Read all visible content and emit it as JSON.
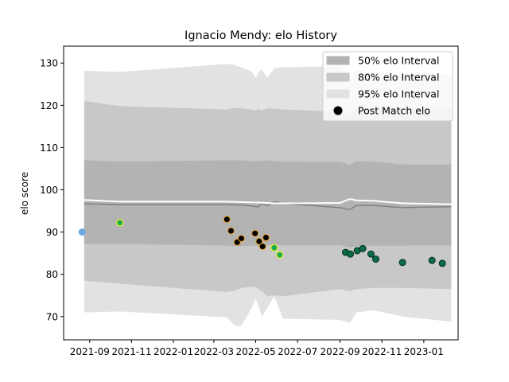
{
  "chart_data": {
    "type": "line",
    "title": "Ignacio Mendy: elo History",
    "xlabel": "",
    "ylabel": "elo score",
    "ylim": [
      64.5,
      134
    ],
    "xlim": [
      "2021-07-25",
      "2023-02-20"
    ],
    "y_ticks": [
      70,
      80,
      90,
      100,
      110,
      120,
      130
    ],
    "x_ticks": [
      "2021-09",
      "2021-11",
      "2022-01",
      "2022-03",
      "2022-05",
      "2022-07",
      "2022-09",
      "2022-11",
      "2023-01"
    ],
    "grid": false,
    "legend_position": "top-right",
    "legend": [
      {
        "label": "50% elo Interval",
        "color": "#b3b3b3",
        "kind": "patch"
      },
      {
        "label": "80% elo Interval",
        "color": "#c8c8c8",
        "kind": "patch"
      },
      {
        "label": "95% elo Interval",
        "color": "#e2e2e2",
        "kind": "patch"
      },
      {
        "label": "Post Match elo",
        "color": "#000000",
        "kind": "marker"
      }
    ],
    "bands": {
      "dates": [
        "2021-08-24",
        "2021-10-15",
        "2022-03-20",
        "2022-04-01",
        "2022-04-10",
        "2022-04-25",
        "2022-05-01",
        "2022-05-05",
        "2022-05-10",
        "2022-05-18",
        "2022-05-28",
        "2022-06-10",
        "2022-09-01",
        "2022-09-15",
        "2022-09-25",
        "2022-10-20",
        "2022-12-01",
        "2023-02-10"
      ],
      "q2_5": [
        71.0,
        71.2,
        69.8,
        67.8,
        67.8,
        72.0,
        74.2,
        72.5,
        70.0,
        72.0,
        74.8,
        69.5,
        69.2,
        68.5,
        71.0,
        71.5,
        70.0,
        68.8
      ],
      "q10": [
        78.5,
        77.8,
        75.8,
        76.2,
        76.8,
        77.0,
        77.0,
        76.5,
        76.0,
        74.8,
        75.0,
        74.8,
        76.5,
        76.0,
        76.5,
        76.8,
        76.8,
        76.5
      ],
      "q25": [
        87.2,
        87.2,
        86.8,
        86.6,
        86.6,
        86.8,
        86.8,
        86.6,
        86.8,
        86.9,
        87.0,
        86.8,
        86.9,
        86.4,
        86.7,
        86.8,
        86.8,
        86.9
      ],
      "q75": [
        107.0,
        106.7,
        107.0,
        107.0,
        107.0,
        106.8,
        106.7,
        106.9,
        106.8,
        107.0,
        106.8,
        106.7,
        106.6,
        105.9,
        106.8,
        106.7,
        106.0,
        106.0
      ],
      "q90": [
        121.0,
        119.8,
        119.0,
        119.4,
        119.3,
        119.0,
        118.8,
        119.2,
        118.8,
        119.3,
        119.2,
        119.0,
        118.5,
        117.5,
        119.4,
        119.2,
        119.5,
        119.5
      ],
      "q97_5": [
        128.2,
        127.9,
        129.8,
        129.5,
        129.0,
        128.0,
        126.5,
        127.8,
        128.5,
        126.5,
        128.8,
        129.0,
        129.3,
        126.8,
        128.3,
        127.8,
        127.8,
        127.3
      ]
    },
    "series": [
      {
        "dates": [
          "2021-08-24",
          "2021-10-15",
          "2022-03-20",
          "2022-04-10",
          "2022-04-25",
          "2022-05-01",
          "2022-05-05",
          "2022-05-10",
          "2022-05-18",
          "2022-05-28",
          "2022-06-10",
          "2022-09-01",
          "2022-09-15",
          "2022-09-25",
          "2022-10-20",
          "2022-12-01",
          "2023-02-10"
        ],
        "values": [
          96.7,
          96.5,
          96.5,
          96.4,
          96.2,
          96.0,
          96.0,
          96.8,
          96.2,
          97.2,
          96.8,
          95.8,
          95.3,
          96.3,
          96.3,
          95.8,
          96.0
        ],
        "color": "#808080",
        "width": 1.5
      },
      {
        "dates": [
          "2021-08-24",
          "2021-10-15",
          "2022-03-20",
          "2022-05-05",
          "2022-05-28",
          "2022-06-10",
          "2022-09-01",
          "2022-09-15",
          "2022-09-25",
          "2022-10-20",
          "2022-12-01",
          "2023-02-10"
        ],
        "values": [
          97.6,
          97.2,
          97.2,
          97.0,
          96.8,
          96.8,
          96.9,
          97.8,
          97.5,
          97.4,
          96.8,
          96.6
        ],
        "color": "#ffffff",
        "width": 2
      }
    ],
    "points": [
      {
        "date": "2021-08-21",
        "value": 90.0,
        "fill": "#6aaae0",
        "edge": "#6aaae0"
      },
      {
        "date": "2021-10-15",
        "value": 92.2,
        "fill": "#1aaa55",
        "edge": "#ffff00"
      },
      {
        "date": "2022-03-20",
        "value": 93.0,
        "fill": "#000000",
        "edge": "#e8a020"
      },
      {
        "date": "2022-03-26",
        "value": 90.3,
        "fill": "#000000",
        "edge": "#e8a020"
      },
      {
        "date": "2022-04-04",
        "value": 87.6,
        "fill": "#000000",
        "edge": "#e8a020"
      },
      {
        "date": "2022-04-10",
        "value": 88.5,
        "fill": "#000000",
        "edge": "#e8a020"
      },
      {
        "date": "2022-04-30",
        "value": 89.7,
        "fill": "#000000",
        "edge": "#e8a020"
      },
      {
        "date": "2022-05-06",
        "value": 87.8,
        "fill": "#000000",
        "edge": "#e8a020"
      },
      {
        "date": "2022-05-11",
        "value": 86.6,
        "fill": "#000000",
        "edge": "#e8a020"
      },
      {
        "date": "2022-05-16",
        "value": 88.7,
        "fill": "#000000",
        "edge": "#e8a020"
      },
      {
        "date": "2022-05-28",
        "value": 86.3,
        "fill": "#1aaa55",
        "edge": "#ffff00"
      },
      {
        "date": "2022-06-05",
        "value": 84.6,
        "fill": "#1aaa55",
        "edge": "#ffff00"
      },
      {
        "date": "2022-09-09",
        "value": 85.2,
        "fill": "#0d6b45",
        "edge": "#003020"
      },
      {
        "date": "2022-09-16",
        "value": 84.8,
        "fill": "#0d6b45",
        "edge": "#003020"
      },
      {
        "date": "2022-09-26",
        "value": 85.6,
        "fill": "#0d6b45",
        "edge": "#003020"
      },
      {
        "date": "2022-10-04",
        "value": 86.1,
        "fill": "#0d6b45",
        "edge": "#003020"
      },
      {
        "date": "2022-10-16",
        "value": 84.8,
        "fill": "#0d6b45",
        "edge": "#003020"
      },
      {
        "date": "2022-10-23",
        "value": 83.6,
        "fill": "#0d6b45",
        "edge": "#003020"
      },
      {
        "date": "2022-12-01",
        "value": 82.8,
        "fill": "#0d6b45",
        "edge": "#003020"
      },
      {
        "date": "2023-01-13",
        "value": 83.3,
        "fill": "#0d6b45",
        "edge": "#003020"
      },
      {
        "date": "2023-01-28",
        "value": 82.6,
        "fill": "#0d6b45",
        "edge": "#003020"
      }
    ],
    "band_colors": {
      "outer": "#e2e2e2",
      "middle": "#c8c8c8",
      "inner": "#b3b3b3"
    }
  }
}
